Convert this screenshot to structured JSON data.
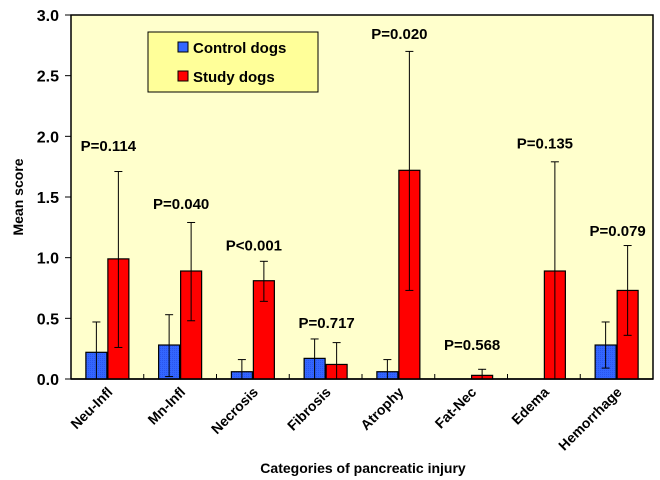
{
  "chart_data": {
    "type": "bar",
    "title": "",
    "xlabel": "Categories of pancreatic injury",
    "ylabel": "Mean score",
    "ylim": [
      0,
      3.0
    ],
    "yticks": [
      "0.0",
      "0.5",
      "1.0",
      "1.5",
      "2.0",
      "2.5",
      "3.0"
    ],
    "ytick_values": [
      0,
      0.5,
      1.0,
      1.5,
      2.0,
      2.5,
      3.0
    ],
    "grid": false,
    "legend_position": "top-left",
    "background": "#ffffcc",
    "categories": [
      "Neu-Infl",
      "Mn-Infl",
      "Necrosis",
      "Fibrosis",
      "Atrophy",
      "Fat-Nec",
      "Edema",
      "Hemorrhage"
    ],
    "series": [
      {
        "name": "Control dogs",
        "color": "#3366ff",
        "values": [
          0.22,
          0.28,
          0.06,
          0.17,
          0.06,
          0.0,
          0.0,
          0.28
        ],
        "error_upper": [
          0.47,
          0.53,
          0.16,
          0.33,
          0.16,
          null,
          null,
          0.47
        ],
        "error_lower": [
          0.0,
          0.02,
          0.0,
          0.0,
          0.0,
          null,
          null,
          0.09
        ]
      },
      {
        "name": "Study dogs",
        "color": "#ff0000",
        "values": [
          0.99,
          0.89,
          0.81,
          0.12,
          1.72,
          0.03,
          0.89,
          0.73
        ],
        "error_upper": [
          1.71,
          1.29,
          0.97,
          0.3,
          2.7,
          0.08,
          1.79,
          1.1
        ],
        "error_lower": [
          0.26,
          0.48,
          0.64,
          0.0,
          0.73,
          0.0,
          0.0,
          0.36
        ]
      }
    ],
    "annotations": [
      {
        "category": "Neu-Infl",
        "text": "P=0.114",
        "y": 1.93
      },
      {
        "category": "Mn-Infl",
        "text": "P=0.040",
        "y": 1.45
      },
      {
        "category": "Necrosis",
        "text": "P<0.001",
        "y": 1.11
      },
      {
        "category": "Fibrosis",
        "text": "P=0.717",
        "y": 0.47
      },
      {
        "category": "Atrophy",
        "text": "P=0.020",
        "y": 2.85
      },
      {
        "category": "Fat-Nec",
        "text": "P=0.568",
        "y": 0.29
      },
      {
        "category": "Edema",
        "text": "P=0.135",
        "y": 1.95
      },
      {
        "category": "Hemorrhage",
        "text": "P=0.079",
        "y": 1.23
      }
    ]
  }
}
